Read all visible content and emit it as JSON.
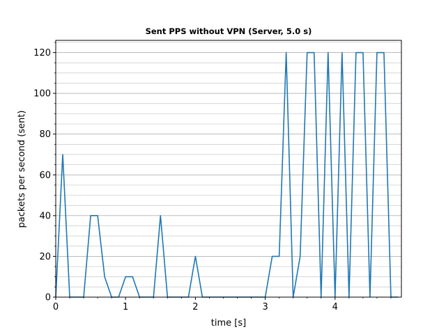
{
  "chart_data": {
    "type": "line",
    "title": "Sent PPS without VPN (Server, 5.0 s)",
    "xlabel": "time [s]",
    "ylabel": "packets per second (sent)",
    "xlim": [
      0,
      4.95
    ],
    "ylim": [
      0,
      126
    ],
    "xticks": [
      0,
      1,
      2,
      3,
      4
    ],
    "yticks": [
      0,
      20,
      40,
      60,
      80,
      100,
      120
    ],
    "grid": "horizontal major and minor lines",
    "series": [
      {
        "color": "#1f77b4",
        "x": [
          0.0,
          0.1,
          0.2,
          0.3,
          0.4,
          0.5,
          0.6,
          0.7,
          0.8,
          0.9,
          1.0,
          1.1,
          1.2,
          1.3,
          1.4,
          1.5,
          1.6,
          1.7,
          1.8,
          1.9,
          2.0,
          2.1,
          2.2,
          2.3,
          2.4,
          2.5,
          2.6,
          2.7,
          2.8,
          2.9,
          3.0,
          3.1,
          3.2,
          3.3,
          3.4,
          3.5,
          3.6,
          3.7,
          3.8,
          3.9,
          4.0,
          4.1,
          4.2,
          4.3,
          4.4,
          4.5,
          4.6,
          4.7,
          4.8,
          4.9
        ],
        "y": [
          0,
          70,
          0,
          0,
          0,
          40,
          40,
          10,
          0,
          0,
          10,
          10,
          0,
          0,
          0,
          40,
          0,
          0,
          0,
          0,
          20,
          0,
          0,
          0,
          0,
          0,
          0,
          0,
          0,
          0,
          0,
          20,
          20,
          120,
          0,
          20,
          120,
          120,
          0,
          120,
          0,
          120,
          0,
          120,
          120,
          0,
          120,
          120,
          0,
          0
        ]
      }
    ]
  }
}
